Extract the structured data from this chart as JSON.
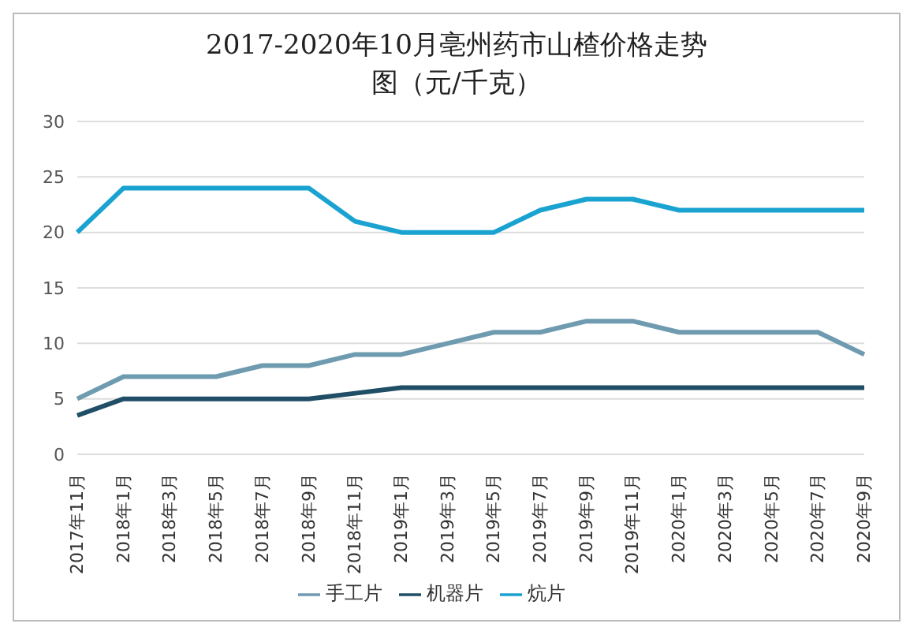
{
  "chart_data": {
    "type": "line",
    "title": "2017-2020年10月亳州药市山楂价格走势图（元/千克）",
    "categories": [
      "2017年11月",
      "2018年1月",
      "2018年3月",
      "2018年5月",
      "2018年7月",
      "2018年9月",
      "2018年11月",
      "2019年1月",
      "2019年3月",
      "2019年5月",
      "2019年7月",
      "2019年9月",
      "2019年11月",
      "2020年1月",
      "2020年3月",
      "2020年5月",
      "2020年7月",
      "2020年9月"
    ],
    "series": [
      {
        "name": "手工片",
        "color": "#6e9bb0",
        "values": [
          5,
          7,
          7,
          7,
          8,
          8,
          9,
          9,
          10,
          11,
          11,
          12,
          12,
          11,
          11,
          11,
          11,
          9
        ]
      },
      {
        "name": "机器片",
        "color": "#1f4e66",
        "values": [
          3.5,
          5,
          5,
          5,
          5,
          5,
          5.5,
          6,
          6,
          6,
          6,
          6,
          6,
          6,
          6,
          6,
          6,
          6
        ]
      },
      {
        "name": "炕片",
        "color": "#1aa3d1",
        "values": [
          20,
          24,
          24,
          24,
          24,
          24,
          21,
          20,
          20,
          20,
          22,
          23,
          23,
          22,
          22,
          22,
          22,
          22
        ]
      }
    ],
    "ylim": [
      0,
      30
    ],
    "yticks": [
      0,
      5,
      10,
      15,
      20,
      25,
      30
    ],
    "grid": "y",
    "legend": "bottom",
    "marker": "none"
  }
}
